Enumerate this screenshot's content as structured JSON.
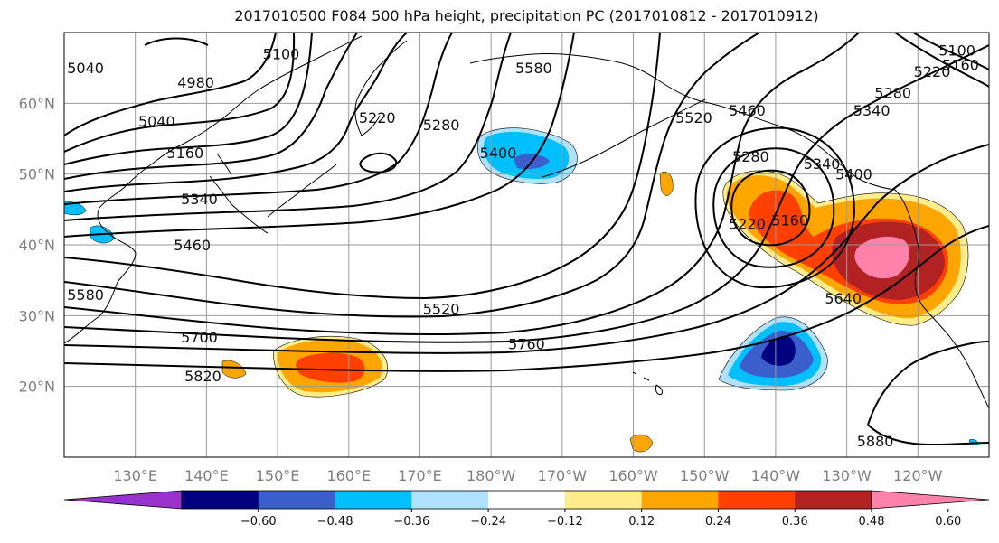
{
  "title": "2017010500 F084 500 hPa height, precipitation PC (2017010812 - 2017010912)",
  "map": {
    "lon_range": [
      120,
      250
    ],
    "lat_range": [
      10,
      70
    ],
    "lat_ticks": [
      {
        "lat": 20,
        "label": "20°N"
      },
      {
        "lat": 30,
        "label": "30°N"
      },
      {
        "lat": 40,
        "label": "40°N"
      },
      {
        "lat": 50,
        "label": "50°N"
      },
      {
        "lat": 60,
        "label": "60°N"
      }
    ],
    "lon_ticks": [
      {
        "lon": 130,
        "label": "130°E"
      },
      {
        "lon": 140,
        "label": "140°E"
      },
      {
        "lon": 150,
        "label": "150°E"
      },
      {
        "lon": 160,
        "label": "160°E"
      },
      {
        "lon": 170,
        "label": "170°E"
      },
      {
        "lon": 180,
        "label": "180°W"
      },
      {
        "lon": 190,
        "label": "170°W"
      },
      {
        "lon": 200,
        "label": "160°W"
      },
      {
        "lon": 210,
        "label": "150°W"
      },
      {
        "lon": 220,
        "label": "140°W"
      },
      {
        "lon": 230,
        "label": "130°W"
      },
      {
        "lon": 240,
        "label": "120°W"
      }
    ],
    "grid": true,
    "coastline_color": "#000000"
  },
  "contours": [
    {
      "label": "4980",
      "lon": 138.5,
      "lat": 63
    },
    {
      "label": "5040",
      "lon": 123,
      "lat": 65
    },
    {
      "label": "5040",
      "lon": 133,
      "lat": 57.5
    },
    {
      "label": "5100",
      "lon": 150.5,
      "lat": 67
    },
    {
      "label": "5160",
      "lon": 137,
      "lat": 53
    },
    {
      "label": "5220",
      "lon": 164,
      "lat": 58
    },
    {
      "label": "5280",
      "lon": 173,
      "lat": 57
    },
    {
      "label": "5340",
      "lon": 139,
      "lat": 46.5
    },
    {
      "label": "5400",
      "lon": 181,
      "lat": 53
    },
    {
      "label": "5460",
      "lon": 138,
      "lat": 40
    },
    {
      "label": "5580",
      "lon": 123,
      "lat": 33
    },
    {
      "label": "5580",
      "lon": 186,
      "lat": 65
    },
    {
      "label": "5520",
      "lon": 173,
      "lat": 31
    },
    {
      "label": "5700",
      "lon": 139,
      "lat": 27
    },
    {
      "label": "5760",
      "lon": 185,
      "lat": 26
    },
    {
      "label": "5820",
      "lon": 139.5,
      "lat": 21.5
    },
    {
      "label": "5880",
      "lon": 234,
      "lat": 12.3
    },
    {
      "label": "5220",
      "lon": 216,
      "lat": 43
    },
    {
      "label": "5160",
      "lon": 222,
      "lat": 43.5
    },
    {
      "label": "5280",
      "lon": 216.5,
      "lat": 52.5
    },
    {
      "label": "5340",
      "lon": 226.5,
      "lat": 51.5
    },
    {
      "label": "5400",
      "lon": 231,
      "lat": 50
    },
    {
      "label": "5460",
      "lon": 216,
      "lat": 59
    },
    {
      "label": "5520",
      "lon": 208.5,
      "lat": 58
    },
    {
      "label": "5640",
      "lon": 229.5,
      "lat": 32.5
    },
    {
      "label": "5100",
      "lon": 245.5,
      "lat": 67.5
    },
    {
      "label": "5160",
      "lon": 246,
      "lat": 65.5
    },
    {
      "label": "5220",
      "lon": 242,
      "lat": 64.5
    },
    {
      "label": "5280",
      "lon": 236.5,
      "lat": 61.5
    },
    {
      "label": "5340",
      "lon": 233.5,
      "lat": 59
    }
  ],
  "colorbar": {
    "colors": [
      "#9932cc",
      "#000080",
      "#3a5fcd",
      "#00bfff",
      "#b0e2ff",
      "#ffffff",
      "#ffec8b",
      "#ffa500",
      "#ff4000",
      "#b22222",
      "#ff82ab"
    ],
    "tick_labels": [
      "−0.60",
      "−0.48",
      "−0.36",
      "−0.24",
      "−0.12",
      "0.12",
      "0.24",
      "0.36",
      "0.48",
      "0.60"
    ],
    "extend": "both"
  },
  "precip_colors": {
    "dark_blue": "#000080",
    "mid_blue": "#3a5fcd",
    "sky_blue": "#00bfff",
    "light_blue": "#b0e2ff",
    "yellow": "#ffec8b",
    "orange": "#ffa500",
    "red_orange": "#ff4000",
    "dark_red": "#b22222",
    "pink": "#ff82ab"
  }
}
